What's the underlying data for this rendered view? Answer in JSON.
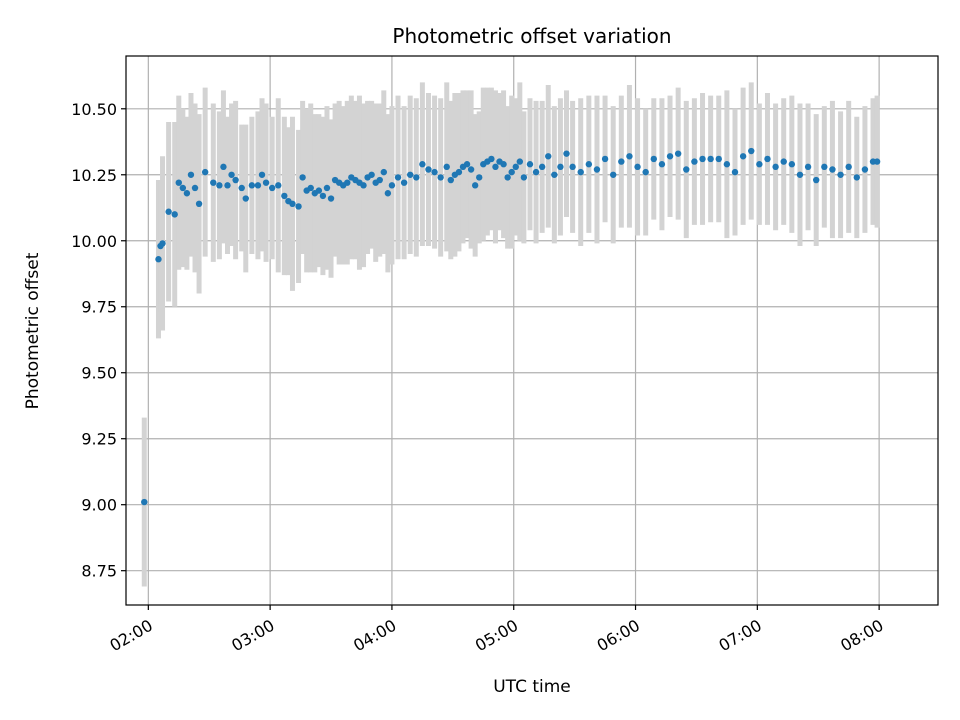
{
  "chart_data": {
    "type": "scatter",
    "title": "Photometric offset variation",
    "xlabel": "UTC time",
    "ylabel": "Photometric offset",
    "x_ticks": [
      "02:00",
      "03:00",
      "04:00",
      "05:00",
      "06:00",
      "07:00",
      "08:00"
    ],
    "y_ticks": [
      "8.75",
      "9.00",
      "9.25",
      "9.50",
      "9.75",
      "10.00",
      "10.25",
      "10.50"
    ],
    "xlim": [
      "01:49",
      "08:29"
    ],
    "ylim": [
      8.62,
      10.7
    ],
    "grid": true,
    "error_bar_color": "#d3d3d3",
    "point_color": "#1f77b4",
    "series": [
      {
        "x": [
          "01:58",
          "02:05",
          "02:06",
          "02:07",
          "02:10",
          "02:13",
          "02:15",
          "02:17",
          "02:19",
          "02:21",
          "02:23",
          "02:25",
          "02:28",
          "02:32",
          "02:35",
          "02:37",
          "02:39",
          "02:41",
          "02:43",
          "02:46",
          "02:48",
          "02:51",
          "02:54",
          "02:56",
          "02:58",
          "03:01",
          "03:04",
          "03:07",
          "03:09",
          "03:11",
          "03:14",
          "03:16",
          "03:18",
          "03:20",
          "03:22",
          "03:24",
          "03:26",
          "03:28",
          "03:30",
          "03:32",
          "03:34",
          "03:36",
          "03:38",
          "03:40",
          "03:42",
          "03:44",
          "03:46",
          "03:48",
          "03:50",
          "03:52",
          "03:54",
          "03:56",
          "03:58",
          "04:00",
          "04:03",
          "04:06",
          "04:09",
          "04:12",
          "04:15",
          "04:18",
          "04:21",
          "04:24",
          "04:27",
          "04:29",
          "04:31",
          "04:33",
          "04:35",
          "04:37",
          "04:39",
          "04:41",
          "04:43",
          "04:45",
          "04:47",
          "04:49",
          "04:51",
          "04:53",
          "04:55",
          "04:57",
          "04:59",
          "05:01",
          "05:03",
          "05:05",
          "05:08",
          "05:11",
          "05:14",
          "05:17",
          "05:20",
          "05:23",
          "05:26",
          "05:29",
          "05:33",
          "05:37",
          "05:41",
          "05:45",
          "05:49",
          "05:53",
          "05:57",
          "06:01",
          "06:05",
          "06:09",
          "06:13",
          "06:17",
          "06:21",
          "06:25",
          "06:29",
          "06:33",
          "06:37",
          "06:41",
          "06:45",
          "06:49",
          "06:53",
          "06:57",
          "07:01",
          "07:05",
          "07:09",
          "07:13",
          "07:17",
          "07:21",
          "07:25",
          "07:29",
          "07:33",
          "07:37",
          "07:41",
          "07:45",
          "07:49",
          "07:53",
          "07:57",
          "07:59"
        ],
        "y": [
          9.01,
          9.93,
          9.98,
          9.99,
          10.11,
          10.1,
          10.22,
          10.2,
          10.18,
          10.25,
          10.2,
          10.14,
          10.26,
          10.22,
          10.21,
          10.28,
          10.21,
          10.25,
          10.23,
          10.2,
          10.16,
          10.21,
          10.21,
          10.25,
          10.22,
          10.2,
          10.21,
          10.17,
          10.15,
          10.14,
          10.13,
          10.24,
          10.19,
          10.2,
          10.18,
          10.19,
          10.17,
          10.2,
          10.16,
          10.23,
          10.22,
          10.21,
          10.22,
          10.24,
          10.23,
          10.22,
          10.21,
          10.24,
          10.25,
          10.22,
          10.23,
          10.26,
          10.18,
          10.21,
          10.24,
          10.22,
          10.25,
          10.24,
          10.29,
          10.27,
          10.26,
          10.24,
          10.28,
          10.23,
          10.25,
          10.26,
          10.28,
          10.29,
          10.27,
          10.21,
          10.24,
          10.29,
          10.3,
          10.31,
          10.28,
          10.3,
          10.29,
          10.24,
          10.26,
          10.28,
          10.3,
          10.24,
          10.29,
          10.26,
          10.28,
          10.32,
          10.25,
          10.28,
          10.33,
          10.28,
          10.26,
          10.29,
          10.27,
          10.31,
          10.25,
          10.3,
          10.32,
          10.28,
          10.26,
          10.31,
          10.29,
          10.32,
          10.33,
          10.27,
          10.3,
          10.31,
          10.31,
          10.31,
          10.29,
          10.26,
          10.32,
          10.34,
          10.29,
          10.31,
          10.28,
          10.3,
          10.29,
          10.25,
          10.28,
          10.23,
          10.28,
          10.27,
          10.25,
          10.28,
          10.24,
          10.27,
          10.3,
          10.3
        ],
        "err": [
          0.32,
          0.3,
          0.25,
          0.33,
          0.34,
          0.35,
          0.33,
          0.3,
          0.29,
          0.31,
          0.32,
          0.34,
          0.32,
          0.3,
          0.28,
          0.29,
          0.26,
          0.27,
          0.3,
          0.24,
          0.28,
          0.26,
          0.28,
          0.29,
          0.3,
          0.27,
          0.33,
          0.3,
          0.28,
          0.33,
          0.29,
          0.29,
          0.31,
          0.32,
          0.3,
          0.29,
          0.3,
          0.31,
          0.3,
          0.29,
          0.31,
          0.3,
          0.31,
          0.31,
          0.3,
          0.33,
          0.31,
          0.29,
          0.28,
          0.3,
          0.29,
          0.31,
          0.3,
          0.3,
          0.31,
          0.29,
          0.3,
          0.3,
          0.31,
          0.29,
          0.29,
          0.3,
          0.32,
          0.3,
          0.31,
          0.3,
          0.29,
          0.28,
          0.3,
          0.27,
          0.25,
          0.29,
          0.28,
          0.27,
          0.29,
          0.26,
          0.28,
          0.27,
          0.29,
          0.26,
          0.3,
          0.25,
          0.25,
          0.27,
          0.25,
          0.27,
          0.26,
          0.26,
          0.24,
          0.25,
          0.28,
          0.26,
          0.28,
          0.24,
          0.26,
          0.25,
          0.27,
          0.26,
          0.24,
          0.23,
          0.25,
          0.23,
          0.25,
          0.26,
          0.24,
          0.25,
          0.24,
          0.24,
          0.28,
          0.24,
          0.26,
          0.26,
          0.23,
          0.25,
          0.24,
          0.24,
          0.26,
          0.27,
          0.24,
          0.25,
          0.23,
          0.26,
          0.24,
          0.25,
          0.23,
          0.24,
          0.24,
          0.25
        ]
      }
    ]
  }
}
